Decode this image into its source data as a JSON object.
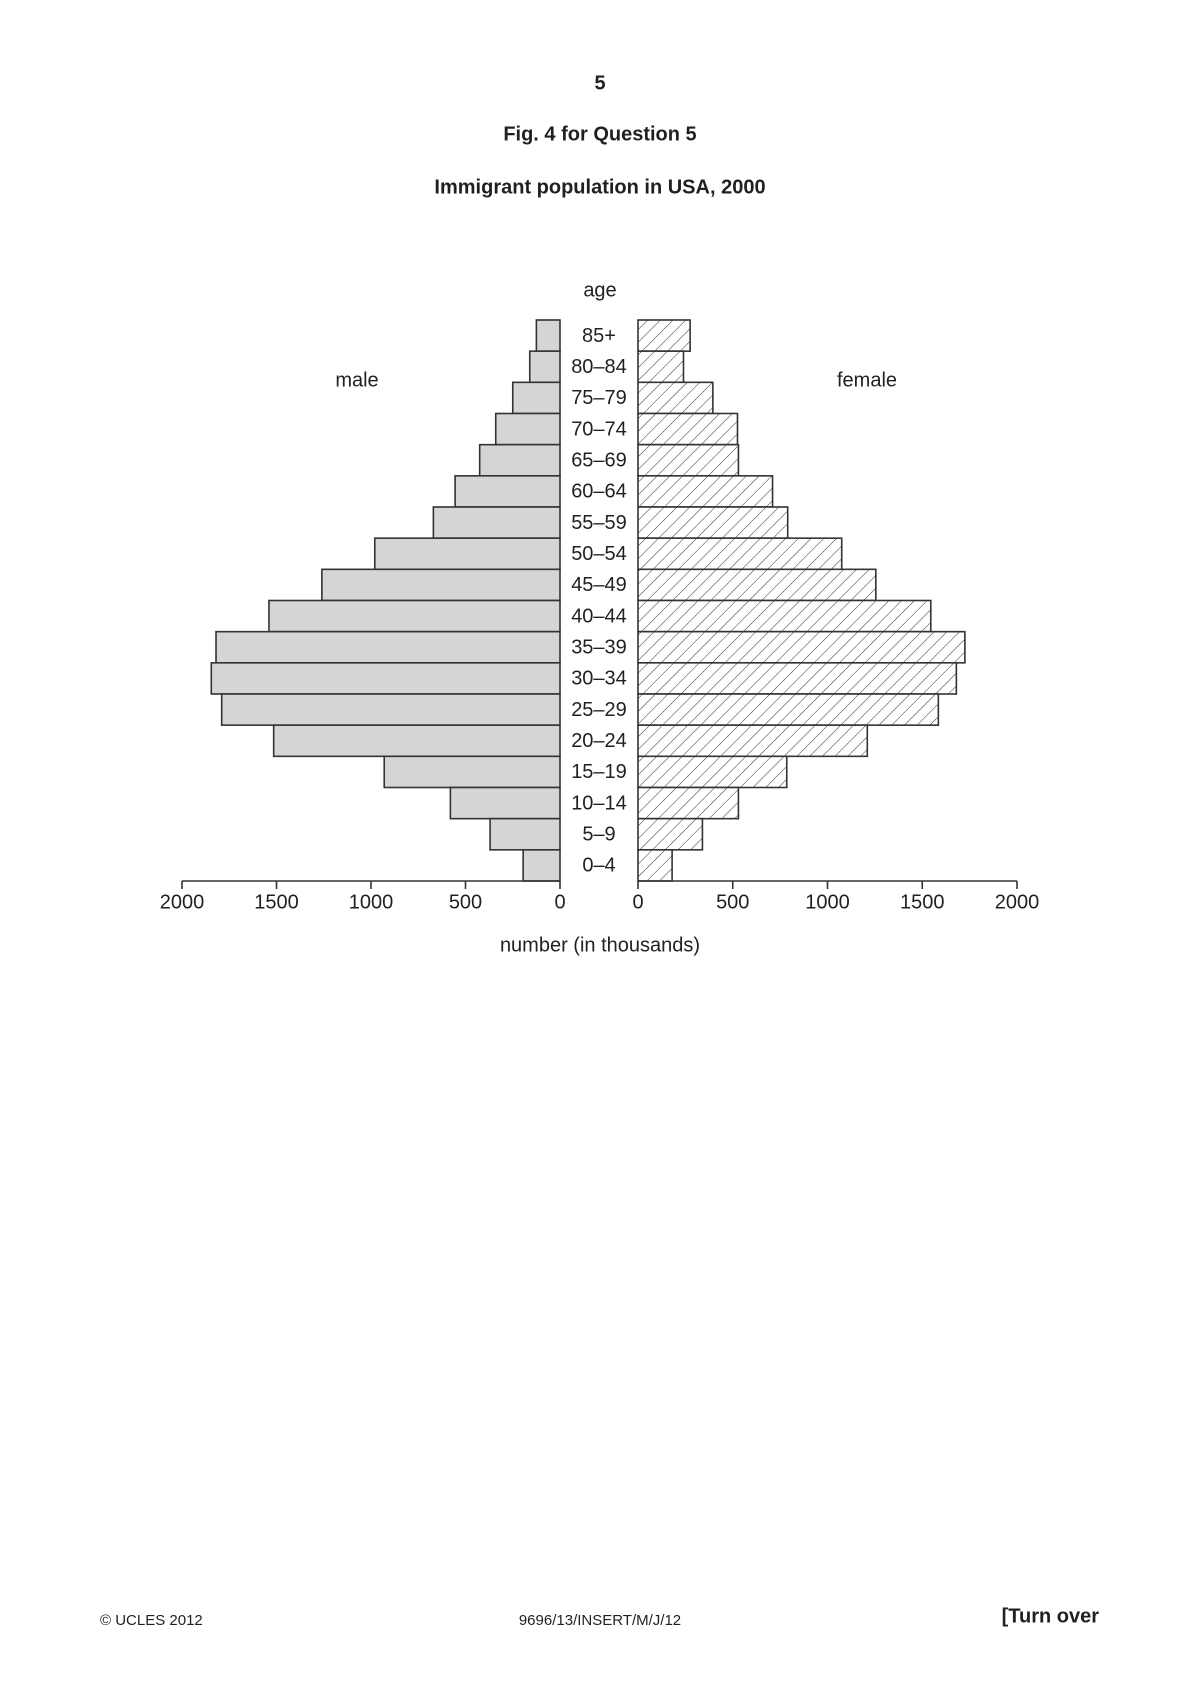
{
  "page_number": "5",
  "figure_label": "Fig. 4 for Question 5",
  "footer": {
    "copyright": "© UCLES 2012",
    "code": "9696/13/INSERT/M/J/12",
    "turn_over": "[Turn over"
  },
  "chart_data": {
    "type": "population_pyramid",
    "title": "Immigrant population in USA, 2000",
    "y_label": "age",
    "x_label": "number (in thousands)",
    "categories": [
      "85+",
      "80–84",
      "75–79",
      "70–74",
      "65–69",
      "60–64",
      "55–59",
      "50–54",
      "45–49",
      "40–44",
      "35–39",
      "30–34",
      "25–29",
      "20–24",
      "15–19",
      "10–14",
      "5–9",
      "0–4"
    ],
    "series": [
      {
        "name": "male",
        "color": "#d4d5d7",
        "hatch": false,
        "values": [
          125,
          160,
          250,
          340,
          425,
          555,
          670,
          980,
          1260,
          1540,
          1820,
          1845,
          1790,
          1515,
          930,
          580,
          370,
          195
        ]
      },
      {
        "name": "female",
        "color": "#ffffff",
        "hatch": true,
        "values": [
          275,
          240,
          395,
          525,
          530,
          710,
          790,
          1075,
          1255,
          1545,
          1725,
          1680,
          1585,
          1210,
          785,
          530,
          340,
          180
        ]
      }
    ],
    "xlim": [
      0,
      2000
    ],
    "xticks": [
      0,
      500,
      1000,
      1500,
      2000
    ]
  }
}
